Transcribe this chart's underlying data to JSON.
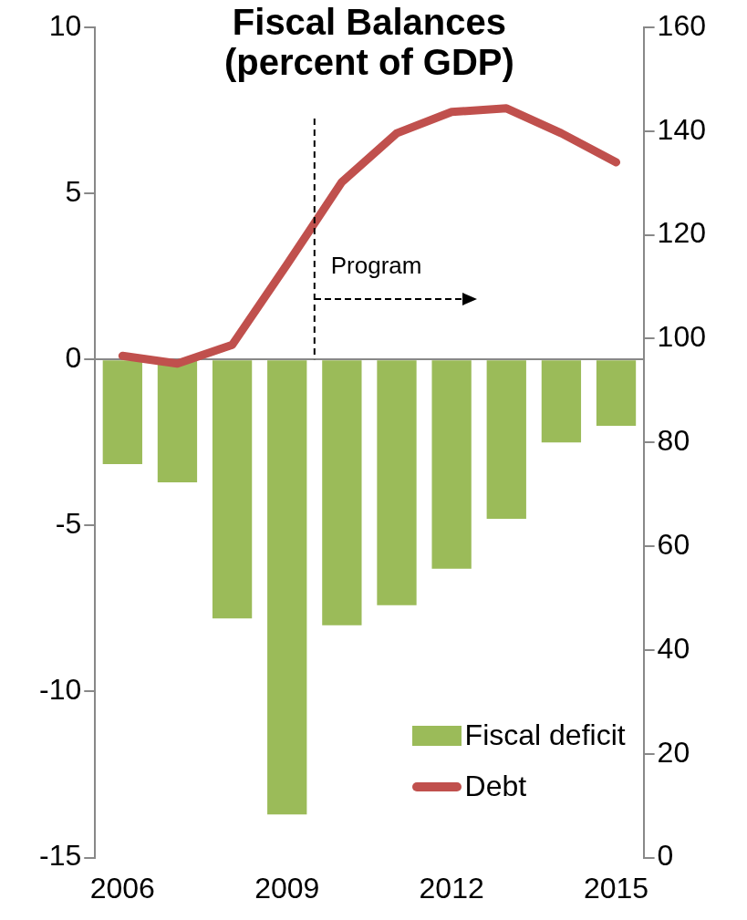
{
  "chart_data": {
    "type": "bar",
    "title": "Fiscal Balances (percent of GDP)",
    "x": [
      2006,
      2007,
      2008,
      2009,
      2010,
      2011,
      2012,
      2013,
      2014,
      2015
    ],
    "xlim": [
      2005.5,
      2015.5
    ],
    "xticks": [
      2006,
      2009,
      2012,
      2015
    ],
    "ylim": [
      -15,
      10
    ],
    "yticks": [
      -15,
      -10,
      -5,
      0,
      5,
      10
    ],
    "y2lim": [
      0,
      160
    ],
    "y2ticks": [
      0,
      20,
      40,
      60,
      80,
      100,
      120,
      140,
      160
    ],
    "series": [
      {
        "name": "Fiscal deficit",
        "color": "#9bbb59",
        "values": [
          -3.15,
          -3.7,
          -7.8,
          -13.7,
          -8.0,
          -7.4,
          -6.3,
          -4.8,
          -2.5,
          -2.0
        ]
      },
      {
        "name": "Debt",
        "type": "line",
        "axis": "y2",
        "color": "#c0504d",
        "values": [
          96.7,
          95.2,
          98.8,
          114.3,
          130.2,
          139.6,
          143.7,
          144.4,
          139.6,
          134.0
        ]
      }
    ],
    "ref_lines": [
      {
        "axis": "x",
        "value": 2009.5,
        "label": "Program",
        "line_style": "dashed"
      }
    ],
    "marker": "none",
    "legend": "bottom right"
  }
}
